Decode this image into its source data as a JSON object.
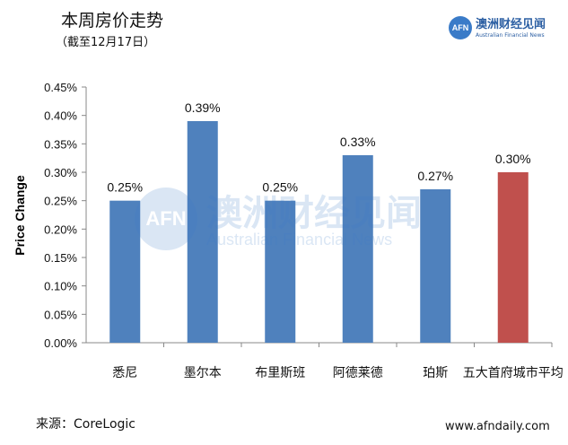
{
  "header": {
    "title": "本周房价走势",
    "subtitle": "（截至12月17日）"
  },
  "logo": {
    "mark": "AFN",
    "name_cn": "澳洲财经见闻",
    "name_en": "Australian Financial News"
  },
  "watermark": {
    "mark": "AFN",
    "name_cn": "澳洲财经见闻",
    "name_en": "Australian Financial News"
  },
  "footer": {
    "source": "来源：CoreLogic",
    "website": "www.afndaily.com"
  },
  "colors": {
    "bar": "#4f81bd",
    "highlight_bar": "#c0504d",
    "axis": "#888888"
  },
  "chart_data": {
    "type": "bar",
    "ylabel": "Price Change",
    "xlabel": "",
    "ylim": [
      0,
      0.45
    ],
    "yticks": [
      "0.00%",
      "0.05%",
      "0.10%",
      "0.15%",
      "0.20%",
      "0.25%",
      "0.30%",
      "0.35%",
      "0.40%",
      "0.45%"
    ],
    "grid": false,
    "categories": [
      "悉尼",
      "墨尔本",
      "布里斯班",
      "阿德莱德",
      "珀斯",
      "五大首府城市平均"
    ],
    "values": [
      0.25,
      0.39,
      0.25,
      0.33,
      0.27,
      0.3
    ],
    "data_labels": [
      "0.25%",
      "0.39%",
      "0.25%",
      "0.33%",
      "0.27%",
      "0.30%"
    ],
    "highlight_index": 5
  }
}
